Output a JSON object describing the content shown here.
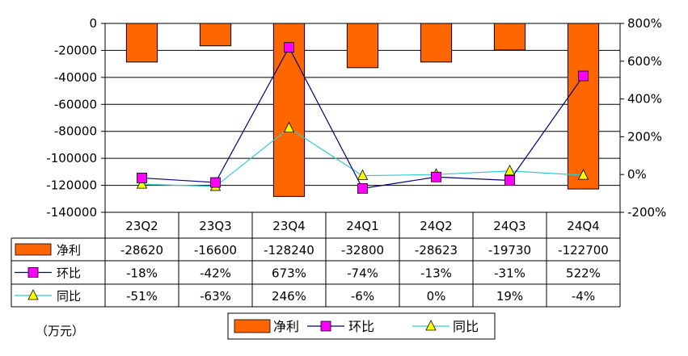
{
  "chart_data": {
    "type": "bar",
    "categories": [
      "23Q2",
      "23Q3",
      "23Q4",
      "24Q1",
      "24Q2",
      "24Q3",
      "24Q4"
    ],
    "unit_label": "（万元）",
    "y_left": {
      "ylim": [
        -140000,
        0
      ],
      "ticks": [
        "0",
        "-20000",
        "-40000",
        "-60000",
        "-80000",
        "-100000",
        "-120000",
        "-140000"
      ]
    },
    "y_right": {
      "ylim": [
        -200,
        800
      ],
      "ticks": [
        "800%",
        "600%",
        "400%",
        "200%",
        "0%",
        "-200%"
      ]
    },
    "series": [
      {
        "name": "净利",
        "kind": "bar",
        "axis": "left",
        "color": "#ff6600",
        "values": [
          -28620,
          -16600,
          -128240,
          -32800,
          -28623,
          -19730,
          -122700
        ],
        "labels": [
          "-28620",
          "-16600",
          "-128240",
          "-32800",
          "-28623",
          "-19730",
          "-122700"
        ]
      },
      {
        "name": "环比",
        "kind": "line",
        "axis": "right",
        "color": "#000080",
        "marker_color": "#ff00ff",
        "marker": "square",
        "values": [
          -18,
          -42,
          673,
          -74,
          -13,
          -31,
          522
        ],
        "labels": [
          "-18%",
          "-42%",
          "673%",
          "-74%",
          "-13%",
          "-31%",
          "522%"
        ]
      },
      {
        "name": "同比",
        "kind": "line",
        "axis": "right",
        "color": "#33cccc",
        "marker_color": "#ffff00",
        "marker": "triangle",
        "values": [
          -51,
          -63,
          246,
          -6,
          0,
          19,
          -4
        ],
        "labels": [
          "-51%",
          "-63%",
          "246%",
          "-6%",
          "0%",
          "19%",
          "-4%"
        ]
      }
    ],
    "grid": true,
    "legend": "bottom"
  }
}
